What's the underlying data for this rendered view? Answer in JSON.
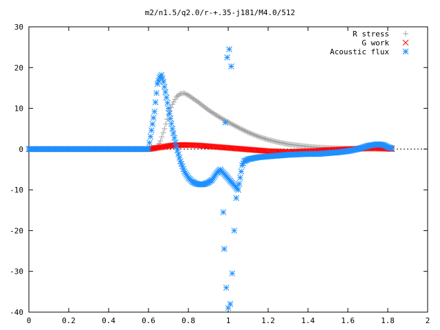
{
  "chart_data": {
    "type": "scatter",
    "title": "m2/n1.5/q2.0/r-+.35-j181/M4.0/512",
    "xlabel": "",
    "ylabel": "",
    "xlim": [
      0,
      2
    ],
    "ylim": [
      -40,
      30
    ],
    "xticks": [
      "0",
      "0.2",
      "0.4",
      "0.6",
      "0.8",
      "1",
      "1.2",
      "1.4",
      "1.6",
      "1.8",
      "2"
    ],
    "yticks": [
      "-40",
      "-30",
      "-20",
      "-10",
      "0",
      "10",
      "20",
      "30"
    ],
    "grid": false,
    "legend_position": "top-right",
    "series": [
      {
        "name": "R stress",
        "marker": "plus",
        "color": "#a0a0a0",
        "points": [
          [
            0.0,
            0
          ],
          [
            0.1,
            0
          ],
          [
            0.2,
            0
          ],
          [
            0.3,
            0
          ],
          [
            0.4,
            0
          ],
          [
            0.5,
            0
          ],
          [
            0.6,
            0
          ],
          [
            0.64,
            0.2
          ],
          [
            0.66,
            2
          ],
          [
            0.68,
            5
          ],
          [
            0.7,
            8.5
          ],
          [
            0.72,
            11
          ],
          [
            0.74,
            12.8
          ],
          [
            0.76,
            13.6
          ],
          [
            0.78,
            13.7
          ],
          [
            0.8,
            13.2
          ],
          [
            0.85,
            11.5
          ],
          [
            0.9,
            9.6
          ],
          [
            0.95,
            8.0
          ],
          [
            1.0,
            6.6
          ],
          [
            1.05,
            5.3
          ],
          [
            1.1,
            4.1
          ],
          [
            1.15,
            3.1
          ],
          [
            1.2,
            2.3
          ],
          [
            1.25,
            1.7
          ],
          [
            1.3,
            1.2
          ],
          [
            1.35,
            0.9
          ],
          [
            1.4,
            0.6
          ],
          [
            1.45,
            0.4
          ],
          [
            1.5,
            0.3
          ],
          [
            1.55,
            0.2
          ],
          [
            1.6,
            0.1
          ],
          [
            1.65,
            0.05
          ],
          [
            1.7,
            0.02
          ],
          [
            1.75,
            0.01
          ],
          [
            1.8,
            0.0
          ],
          [
            1.82,
            0.0
          ]
        ]
      },
      {
        "name": "G work",
        "marker": "cross",
        "color": "#ff0000",
        "points": [
          [
            0.0,
            0
          ],
          [
            0.1,
            0
          ],
          [
            0.2,
            0
          ],
          [
            0.3,
            0
          ],
          [
            0.4,
            0
          ],
          [
            0.5,
            0
          ],
          [
            0.6,
            0
          ],
          [
            0.64,
            0.3
          ],
          [
            0.68,
            0.6
          ],
          [
            0.72,
            0.9
          ],
          [
            0.76,
            1.0
          ],
          [
            0.8,
            1.0
          ],
          [
            0.85,
            0.9
          ],
          [
            0.9,
            0.7
          ],
          [
            0.95,
            0.5
          ],
          [
            1.0,
            0.3
          ],
          [
            1.05,
            0.1
          ],
          [
            1.1,
            -0.1
          ],
          [
            1.15,
            -0.3
          ],
          [
            1.2,
            -0.5
          ],
          [
            1.25,
            -0.6
          ],
          [
            1.3,
            -0.7
          ],
          [
            1.35,
            -0.6
          ],
          [
            1.4,
            -0.5
          ],
          [
            1.45,
            -0.4
          ],
          [
            1.5,
            -0.2
          ],
          [
            1.55,
            -0.1
          ],
          [
            1.6,
            0.0
          ],
          [
            1.65,
            0.1
          ],
          [
            1.7,
            0.2
          ],
          [
            1.75,
            0.2
          ],
          [
            1.8,
            0.1
          ],
          [
            1.82,
            0.0
          ]
        ]
      },
      {
        "name": "Acoustic flux",
        "marker": "star",
        "color": "#1e90ff",
        "points": [
          [
            0.0,
            0
          ],
          [
            0.1,
            0
          ],
          [
            0.2,
            0
          ],
          [
            0.3,
            0
          ],
          [
            0.4,
            0
          ],
          [
            0.5,
            0
          ],
          [
            0.6,
            0
          ],
          [
            0.63,
            9.2
          ],
          [
            0.645,
            16
          ],
          [
            0.655,
            17.5
          ],
          [
            0.665,
            18.2
          ],
          [
            0.675,
            16.5
          ],
          [
            0.685,
            14
          ],
          [
            0.7,
            10
          ],
          [
            0.72,
            5
          ],
          [
            0.74,
            0.5
          ],
          [
            0.76,
            -3
          ],
          [
            0.78,
            -5.5
          ],
          [
            0.8,
            -7
          ],
          [
            0.82,
            -8
          ],
          [
            0.84,
            -8.5
          ],
          [
            0.86,
            -8.7
          ],
          [
            0.88,
            -8.6
          ],
          [
            0.9,
            -8.2
          ],
          [
            0.92,
            -7.5
          ],
          [
            0.94,
            -6
          ],
          [
            0.96,
            -5
          ],
          [
            0.975,
            -15.5
          ],
          [
            0.98,
            -24.5
          ],
          [
            0.985,
            6.5
          ],
          [
            0.99,
            -34
          ],
          [
            0.995,
            22.5
          ],
          [
            1.0,
            -39
          ],
          [
            1.005,
            24.5
          ],
          [
            1.01,
            -38
          ],
          [
            1.015,
            20.3
          ],
          [
            1.02,
            -30.5
          ],
          [
            1.03,
            -20
          ],
          [
            1.04,
            -12
          ],
          [
            1.05,
            -10
          ],
          [
            1.06,
            -7
          ],
          [
            1.07,
            -4
          ],
          [
            1.08,
            -3
          ],
          [
            1.1,
            -2.5
          ],
          [
            1.15,
            -2.0
          ],
          [
            1.2,
            -1.8
          ],
          [
            1.25,
            -1.6
          ],
          [
            1.3,
            -1.4
          ],
          [
            1.35,
            -1.3
          ],
          [
            1.4,
            -1.2
          ],
          [
            1.45,
            -1.2
          ],
          [
            1.5,
            -1.0
          ],
          [
            1.55,
            -0.8
          ],
          [
            1.6,
            -0.5
          ],
          [
            1.65,
            0.0
          ],
          [
            1.7,
            0.8
          ],
          [
            1.75,
            1.2
          ],
          [
            1.78,
            1.0
          ],
          [
            1.8,
            0.5
          ],
          [
            1.82,
            0.2
          ]
        ]
      }
    ]
  }
}
